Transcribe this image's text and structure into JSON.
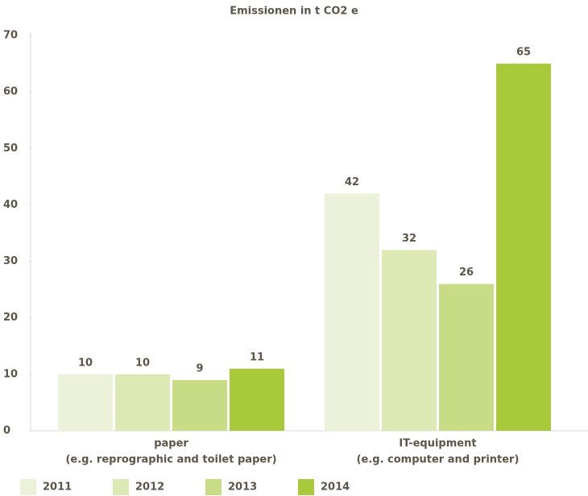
{
  "chart_data": {
    "type": "bar",
    "title": "Emissionen in t CO2 e",
    "categories": [
      [
        "paper",
        "(e.g. reprographic and toilet paper)"
      ],
      [
        "IT-equipment",
        "(e.g. computer and printer)"
      ]
    ],
    "series": [
      {
        "name": "2011",
        "color": "#ecf2d9",
        "values": [
          10,
          42
        ]
      },
      {
        "name": "2012",
        "color": "#dde9b5",
        "values": [
          10,
          32
        ]
      },
      {
        "name": "2013",
        "color": "#c7dc85",
        "values": [
          9,
          26
        ]
      },
      {
        "name": "2014",
        "color": "#a8c93a",
        "values": [
          11,
          65
        ]
      }
    ],
    "ylim": [
      0,
      70
    ],
    "yticks": [
      0,
      10,
      20,
      30,
      40,
      50,
      60,
      70
    ],
    "legend": "bottom"
  }
}
